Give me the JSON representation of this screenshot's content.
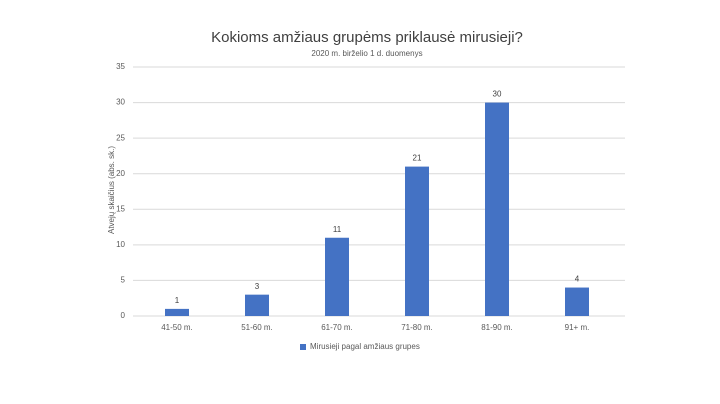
{
  "chart_data": {
    "type": "bar",
    "title": "Kokioms amžiaus grupėms priklausė mirusieji?",
    "subtitle": "2020 m. birželio 1 d. duomenys",
    "y_label": "Atvejų skaičius (abs. sk.)",
    "categories": [
      "41-50 m.",
      "51-60 m.",
      "61-70 m.",
      "71-80 m.",
      "81-90 m.",
      "91+ m."
    ],
    "series": [
      {
        "name": "Mirusieji pagal amžiaus grupes",
        "color": "#4472c4",
        "values": [
          1,
          3,
          11,
          21,
          30,
          4
        ]
      }
    ],
    "ylim": [
      0,
      35
    ],
    "yticks": [
      0,
      5,
      10,
      15,
      20,
      25,
      30,
      35
    ],
    "grid": true,
    "legend": "bottom"
  }
}
